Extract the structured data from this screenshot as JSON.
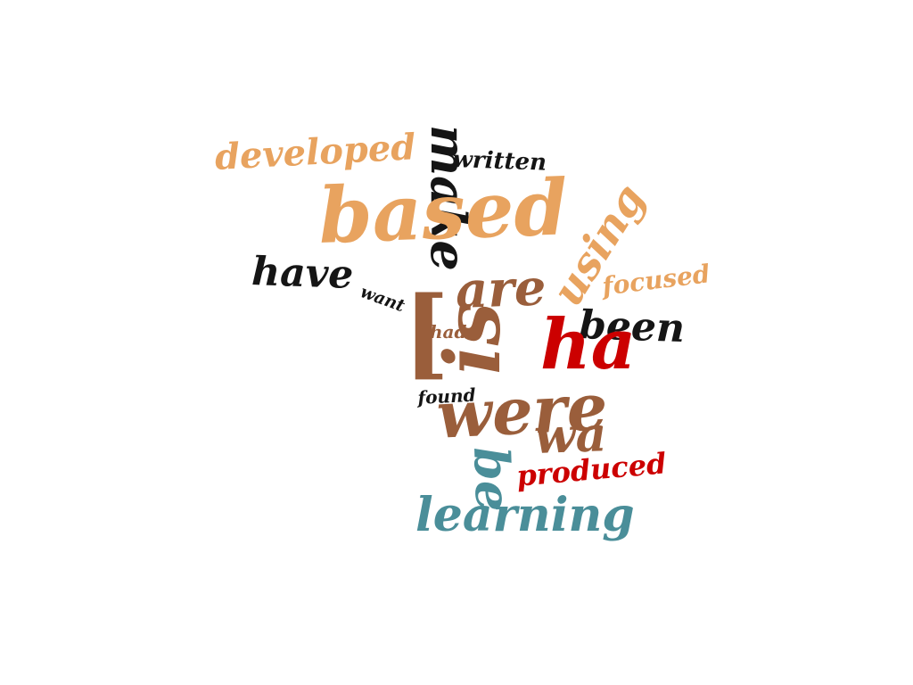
{
  "cloud": {
    "words": {
      "developed": "developed",
      "written": "written",
      "make": "make",
      "based": "based",
      "using": "using",
      "have": "have",
      "are": "are",
      "focused": "focused",
      "want": "want",
      "bracket": "[",
      "is": "is",
      "had": "had",
      "been": "been",
      "ha": "ha",
      "found": "found",
      "were": "were",
      "wa": "wa",
      "be": "be",
      "produced": "produced",
      "learning": "learning"
    },
    "colors": {
      "orange": "#e8a35f",
      "black": "#151515",
      "brown": "#9a5e3b",
      "red": "#cc0000",
      "teal": "#4a8e99"
    }
  }
}
